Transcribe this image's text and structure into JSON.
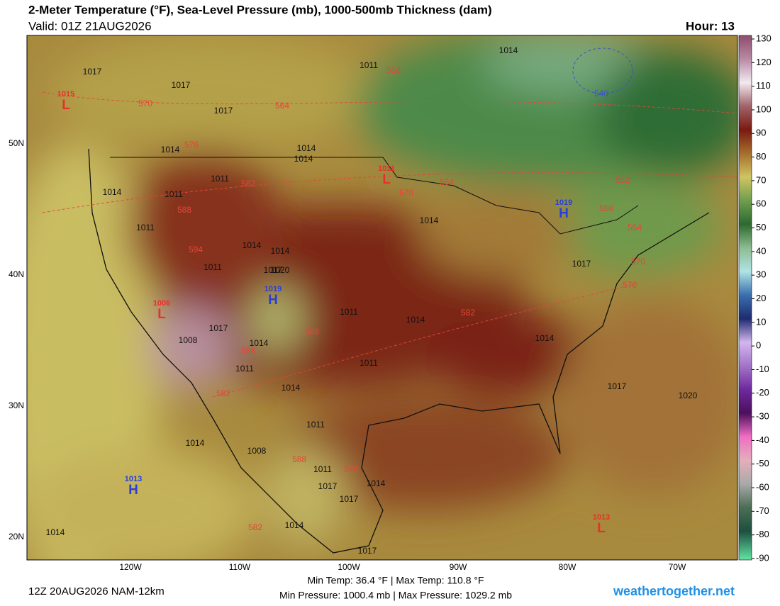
{
  "header": {
    "title": "2-Meter Temperature (°F), Sea-Level Pressure (mb), 1000-500mb Thickness (dam)",
    "valid": "Valid: 01Z 21AUG2026",
    "hour": "Hour: 13"
  },
  "footer": {
    "run": "12Z 20AUG2026 NAM-12km",
    "temp_line": "Min Temp:  36.4 °F | Max Temp: 110.8 °F",
    "pressure_line": "Min Pressure: 1000.4 mb | Max Pressure: 1029.2 mb",
    "site": "weathertogether.net"
  },
  "lat_labels": [
    "50N",
    "40N",
    "30N",
    "20N"
  ],
  "lon_labels": [
    "120W",
    "110W",
    "100W",
    "90W",
    "80W",
    "70W"
  ],
  "colorbar_ticks": [
    130,
    120,
    110,
    100,
    90,
    80,
    70,
    60,
    50,
    40,
    30,
    20,
    10,
    0,
    -10,
    -20,
    -30,
    -40,
    -50,
    -60,
    -70,
    -80,
    -90
  ],
  "highs_lows": [
    {
      "symbol": "L",
      "value": "1015"
    },
    {
      "symbol": "L",
      "value": "1011"
    },
    {
      "symbol": "H",
      "value": "1019"
    },
    {
      "symbol": "H",
      "value": "1019"
    },
    {
      "symbol": "L",
      "value": "1006"
    },
    {
      "symbol": "H",
      "value": "1013"
    },
    {
      "symbol": "L",
      "value": "1013"
    }
  ],
  "isobar_labels": [
    "1014",
    "1011",
    "1017",
    "1017",
    "1017",
    "1014",
    "1014",
    "1014",
    "1011",
    "1014",
    "1011",
    "1014",
    "1017",
    "1020",
    "1014",
    "1011",
    "1014",
    "1008",
    "1017",
    "1011",
    "1011",
    "1014",
    "1011",
    "1014",
    "1017",
    "1017",
    "1020",
    "1014",
    "1011",
    "1008",
    "1011",
    "1014",
    "1014",
    "1014",
    "1017",
    "1017",
    "1011",
    "1014",
    "1017",
    "1014"
  ],
  "thickness_labels": [
    "558",
    "564",
    "570",
    "576",
    "582",
    "588",
    "594",
    "570",
    "564",
    "552",
    "558",
    "564",
    "570",
    "576",
    "582",
    "588",
    "588",
    "582",
    "582",
    "588",
    "576",
    "540"
  ]
}
